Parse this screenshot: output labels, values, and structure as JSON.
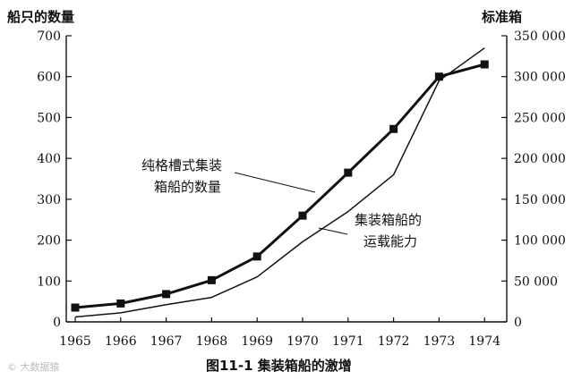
{
  "chart_data": {
    "type": "line",
    "x": [
      1965,
      1966,
      1967,
      1968,
      1969,
      1970,
      1971,
      1972,
      1973,
      1974
    ],
    "left_axis_title": "船只的数量",
    "right_axis_title": "标准箱",
    "left_ylim": [
      0,
      700
    ],
    "right_ylim": [
      0,
      350000
    ],
    "left_ticks": [
      "0",
      "100",
      "200",
      "300",
      "400",
      "500",
      "600",
      "700"
    ],
    "right_ticks": [
      "0",
      "50 000",
      "100 000",
      "150 000",
      "200 000",
      "250 000",
      "300 000",
      "350 000"
    ],
    "x_ticks": [
      "1965",
      "1966",
      "1967",
      "1968",
      "1969",
      "1970",
      "1971",
      "1972",
      "1973",
      "1974"
    ],
    "series": [
      {
        "name": "纯格槽式集装箱船的数量",
        "axis": "left",
        "marker": "square",
        "values": [
          35,
          45,
          68,
          102,
          160,
          260,
          365,
          472,
          600,
          630
        ]
      },
      {
        "name": "集装箱船的运载能力",
        "axis": "right",
        "marker": "none",
        "values": [
          6000,
          11000,
          21000,
          30000,
          55000,
          98000,
          135000,
          180000,
          295000,
          335000
        ]
      }
    ],
    "annotations": [
      {
        "lines": [
          "纯格槽式集装",
          "箱船的数量"
        ]
      },
      {
        "lines": [
          "集装箱船的",
          "运载能力"
        ]
      }
    ],
    "caption": "图11-1   集装箱船的激增",
    "grid": false,
    "legend": "none"
  },
  "watermark": "© 大数据猿",
  "colors": {
    "line": "#111111",
    "background": "#ffffff"
  }
}
